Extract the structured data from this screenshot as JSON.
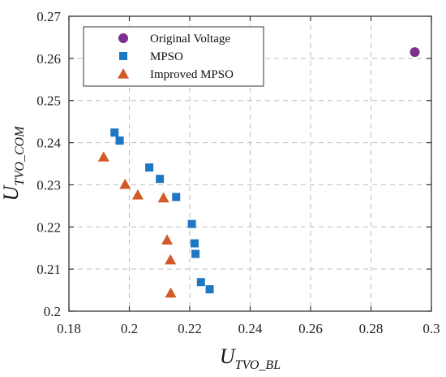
{
  "chart_data": {
    "type": "scatter",
    "xlabel": {
      "main": "U",
      "sub": "TVO_BL"
    },
    "ylabel": {
      "main": "U",
      "sub": "TVO_COM"
    },
    "xlim": [
      0.18,
      0.3
    ],
    "ylim": [
      0.2,
      0.27
    ],
    "x_ticks": [
      "0.18",
      "0.2",
      "0.22",
      "0.24",
      "0.26",
      "0.28",
      "0.3"
    ],
    "y_ticks": [
      "0.2",
      "0.21",
      "0.22",
      "0.23",
      "0.24",
      "0.25",
      "0.26",
      "0.27"
    ],
    "grid": true,
    "legend_position": "top-left",
    "series": [
      {
        "name": "Original Voltage",
        "marker": "circle",
        "color": "#7b2f8e",
        "points": [
          [
            0.2945,
            0.2615
          ]
        ]
      },
      {
        "name": "MPSO",
        "marker": "square",
        "color": "#1f77c2",
        "points": [
          [
            0.1951,
            0.2424
          ],
          [
            0.1968,
            0.2405
          ],
          [
            0.2066,
            0.2341
          ],
          [
            0.2101,
            0.2314
          ],
          [
            0.2155,
            0.2271
          ],
          [
            0.2207,
            0.2207
          ],
          [
            0.2216,
            0.2161
          ],
          [
            0.2219,
            0.2136
          ],
          [
            0.2237,
            0.2069
          ],
          [
            0.2266,
            0.2052
          ]
        ]
      },
      {
        "name": "Improved MPSO",
        "marker": "triangle",
        "color": "#d35a26",
        "points": [
          [
            0.1915,
            0.2366
          ],
          [
            0.1986,
            0.2301
          ],
          [
            0.2028,
            0.2276
          ],
          [
            0.2113,
            0.2269
          ],
          [
            0.2125,
            0.2169
          ],
          [
            0.2136,
            0.2122
          ],
          [
            0.2137,
            0.2043
          ]
        ]
      }
    ]
  }
}
